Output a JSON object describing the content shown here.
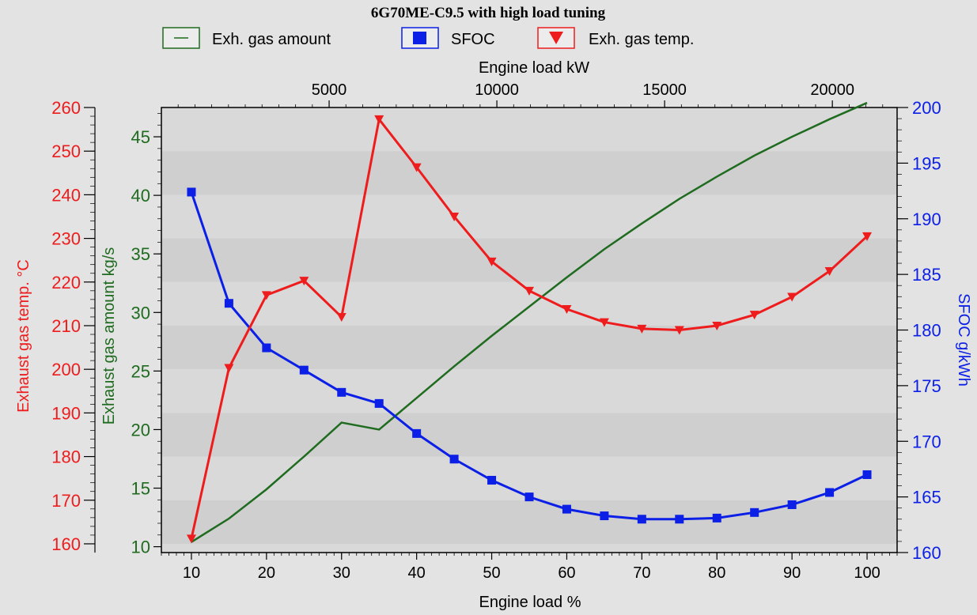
{
  "colors": {
    "background": "#e3e3e3",
    "plot_band_light": "#d9d9d9",
    "plot_band_dark": "#cfcfcf",
    "exh_gas_amount": "#1f6b1f",
    "sfoc": "#0b1fe6",
    "exh_gas_temp": "#ee1c1c",
    "axis": "#000000"
  },
  "chart_data": {
    "type": "line",
    "title": "6G70ME-C9.5 with high load tuning",
    "grid": "horizontal-bands",
    "legend_placement": "top-center",
    "legend": [
      {
        "label": "Exh. gas amount",
        "marker": "line",
        "series": "exh_gas_amount"
      },
      {
        "label": "SFOC",
        "marker": "square",
        "series": "sfoc"
      },
      {
        "label": "Exh. gas temp.",
        "marker": "triangle-down",
        "series": "exh_gas_temp"
      }
    ],
    "x": [
      10,
      15,
      20,
      25,
      30,
      35,
      40,
      45,
      50,
      55,
      60,
      65,
      70,
      75,
      80,
      85,
      90,
      95,
      100
    ],
    "axes": {
      "x_bottom": {
        "label": "Engine load %",
        "range": [
          6,
          104
        ],
        "ticks": [
          10,
          20,
          30,
          40,
          50,
          60,
          70,
          80,
          90,
          100
        ]
      },
      "x_top": {
        "label": "Engine load kW",
        "ticks": [
          5000,
          10000,
          15000,
          20000
        ],
        "tick_positions_percent": [
          22.8,
          45.6,
          68.4,
          91.2
        ]
      },
      "y_temp": {
        "label": "Exhaust gas temp. °C",
        "range": [
          158,
          260
        ],
        "ticks": [
          160,
          170,
          180,
          190,
          200,
          210,
          220,
          230,
          240,
          250,
          260
        ]
      },
      "y_amount": {
        "label": "Exhaust gas amount kg/s",
        "range": [
          9.5,
          47.5
        ],
        "ticks": [
          10,
          15,
          20,
          25,
          30,
          35,
          40,
          45
        ]
      },
      "y_sfoc": {
        "label": "SFOC g/kWh",
        "range": [
          160,
          200
        ],
        "ticks": [
          160,
          165,
          170,
          175,
          180,
          185,
          190,
          195,
          200
        ]
      }
    },
    "series": [
      {
        "name": "Exh. gas amount",
        "key": "exh_gas_amount",
        "axis": "y_amount",
        "values": [
          10.4,
          12.4,
          14.9,
          17.7,
          20.6,
          20.0,
          22.7,
          25.4,
          28.0,
          30.5,
          33.0,
          35.4,
          37.6,
          39.7,
          41.6,
          43.4,
          45.0,
          46.5,
          47.9
        ]
      },
      {
        "name": "SFOC",
        "key": "sfoc",
        "axis": "y_sfoc",
        "values": [
          192.4,
          182.4,
          178.4,
          176.4,
          174.4,
          173.4,
          170.7,
          168.4,
          166.5,
          165.0,
          163.9,
          163.3,
          163.0,
          163.0,
          163.1,
          163.6,
          164.3,
          165.4,
          167.0
        ]
      },
      {
        "name": "Exh. gas temp.",
        "key": "exh_gas_temp",
        "axis": "y_temp",
        "values": [
          161.2,
          200.3,
          217.0,
          220.3,
          212.0,
          257.3,
          246.3,
          235.0,
          224.7,
          218.0,
          213.8,
          210.8,
          209.3,
          209.0,
          210.0,
          212.5,
          216.6,
          222.5,
          230.5
        ]
      }
    ]
  }
}
